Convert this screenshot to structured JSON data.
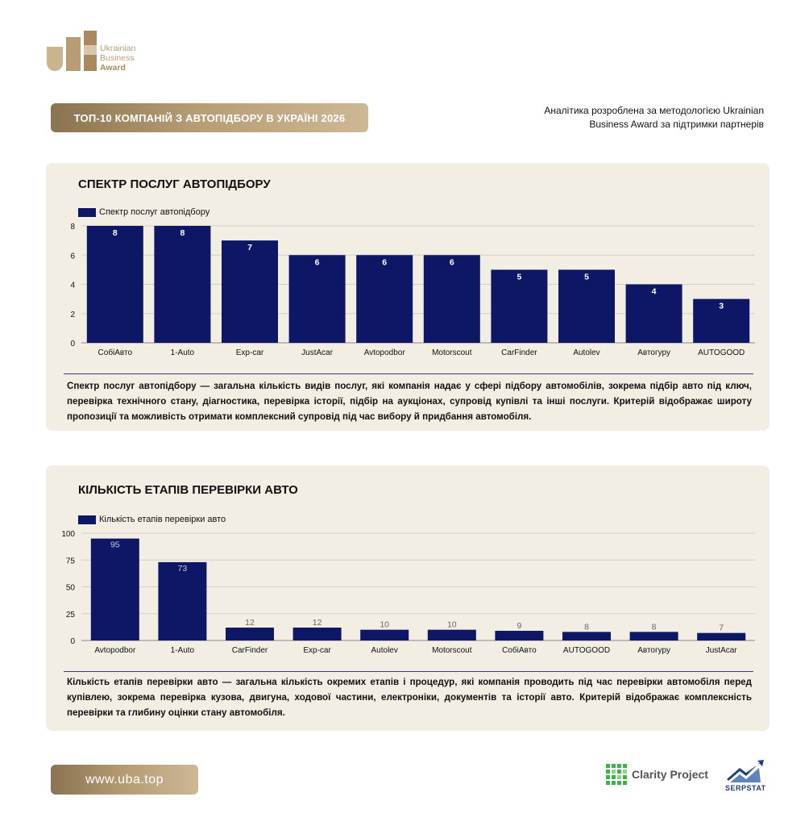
{
  "header": {
    "logo_line1": "Ukrainian",
    "logo_line2": "Business",
    "logo_line3": "Award",
    "title": "ТОП-10 КОМПАНІЙ З АВТОПІДБОРУ В УКРАЇНІ 2026",
    "note": "Аналітика розроблена за методологією Ukrainian Business Award за підтримки партнерів"
  },
  "chart_data": [
    {
      "type": "bar",
      "title": "СПЕКТР ПОСЛУГ АВТОПІДБОРУ",
      "legend": "Спектр послуг автопідбору",
      "categories": [
        "СобіАвто",
        "1-Auto",
        "Exp-car",
        "JustAcar",
        "Avtopodbor",
        "Motorscout",
        "CarFinder",
        "Autolev",
        "Автогуру",
        "AUTOGOOD"
      ],
      "values": [
        8,
        8,
        7,
        6,
        6,
        6,
        5,
        5,
        4,
        3
      ],
      "ylim": [
        0,
        8
      ],
      "yticks": [
        0,
        2,
        4,
        6,
        8
      ],
      "label_position": "inside",
      "grid": true,
      "description": "Спектр послуг автопідбору — загальна кількість видів послуг, які компанія надає у сфері підбору автомобілів, зокрема підбір авто під ключ, перевірка технічного стану, діагностика, перевірка історії, підбір на аукціонах, супровід купівлі та інші послуги. Критерій відображає широту пропозиції та можливість отримати комплексний супровід під час вибору й придбання автомобіля."
    },
    {
      "type": "bar",
      "title": "КІЛЬКІСТЬ ЕТАПІВ ПЕРЕВІРКИ АВТО",
      "legend": "Кількість етапів перевірки авто",
      "categories": [
        "Avtopodbor",
        "1-Auto",
        "CarFinder",
        "Exp-car",
        "Autolev",
        "Motorscout",
        "СобіАвто",
        "AUTOGOOD",
        "Автогуру",
        "JustAcar"
      ],
      "values": [
        95,
        73,
        12,
        12,
        10,
        10,
        9,
        8,
        8,
        7
      ],
      "ylim": [
        0,
        100
      ],
      "yticks": [
        0,
        25,
        50,
        75,
        100
      ],
      "label_position": "above",
      "grid": true,
      "description": "Кількість етапів перевірки авто — загальна кількість окремих етапів і процедур, які компанія проводить під час перевірки автомобіля перед купівлею, зокрема перевірка кузова, двигуна, ходової частини, електроніки, документів та історії авто. Критерій відображає комплексність перевірки та глибину оцінки стану автомобіля."
    }
  ],
  "footer": {
    "url": "www.uba.top",
    "partner1": "Clarity Project",
    "partner2": "SERPSTAT"
  },
  "colors": {
    "bar": "#0e1766",
    "panel": "#f2eee4",
    "gold": "#b59c74"
  }
}
